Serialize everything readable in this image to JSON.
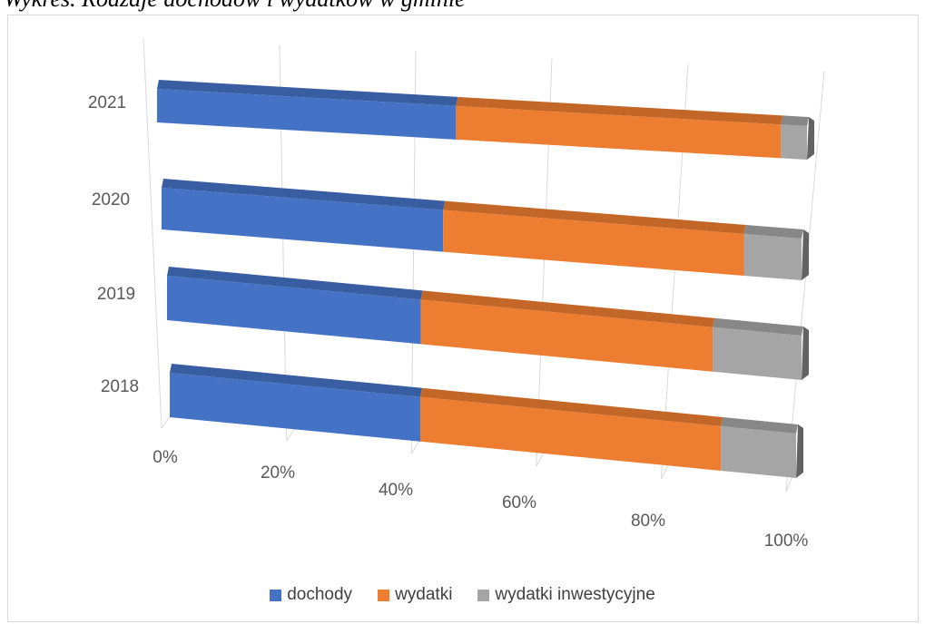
{
  "caption": "Wykres. Rodzaje dochodów i wydatków w gminie",
  "chart_data": {
    "type": "bar",
    "orientation": "horizontal",
    "stacked": "percent",
    "style": "3d",
    "categories": [
      "2018",
      "2019",
      "2020",
      "2021"
    ],
    "x_ticks": [
      "0%",
      "20%",
      "40%",
      "60%",
      "80%",
      "100%"
    ],
    "xlim": [
      0,
      100
    ],
    "grid": true,
    "legend_position": "bottom",
    "series": [
      {
        "name": "dochody",
        "color": "#4472C4",
        "values": [
          40,
          40,
          44,
          46
        ]
      },
      {
        "name": "wydatki",
        "color": "#ED7D31",
        "values": [
          48,
          46,
          47,
          50
        ]
      },
      {
        "name": "wydatki inwestycyjne",
        "color": "#A5A5A5",
        "values": [
          12,
          14,
          9,
          4
        ]
      }
    ]
  }
}
